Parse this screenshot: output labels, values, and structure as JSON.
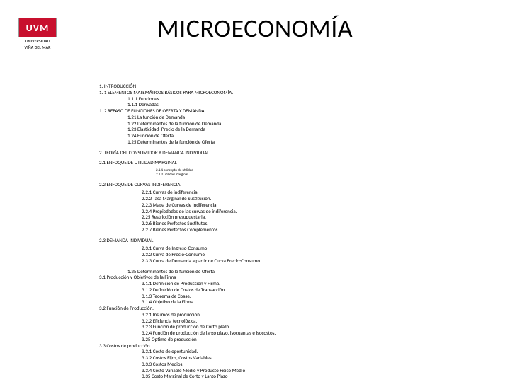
{
  "logo": {
    "letters": "UVM",
    "sub1": "UNIVERSIDAD",
    "sub2": "VIÑA DEL MAR"
  },
  "title": "MICROECONOMÍA",
  "lines": [
    {
      "cls": "l0",
      "t": "1. INTRODUCCIÓN"
    },
    {
      "cls": "l0",
      "t": "1. 1 ELEMENTOS MATEMÁTICOS BÁSICOS PARA MICROECONOMÍA."
    },
    {
      "cls": "l1",
      "t": "1.1.1 Funciones"
    },
    {
      "cls": "l1",
      "t": "1.1.1 Derivadas"
    },
    {
      "cls": "l0",
      "t": "1. 2 REPASO DE FUNCIONES DE OFERTA Y DEMANDA"
    },
    {
      "cls": "l1",
      "t": "1.21 La función de Demanda"
    },
    {
      "cls": "l1",
      "t": "1.22 Determinantes de la función de Demanda"
    },
    {
      "cls": "l1",
      "t": "1.23 Elasticidad- Precio de la Demanda"
    },
    {
      "cls": "l1",
      "t": "1.24 Función de Oferta"
    },
    {
      "cls": "l1",
      "t": "1.25 Determinantes de la función de Oferta"
    },
    {
      "cls": "l0 sect",
      "t": "2. TEORÍA DEL CONSUMIDOR Y DEMANDA INDIVIDUAL."
    },
    {
      "cls": "l0 sect",
      "t": "2.1 ENFOQUE DE UTILIDAD MARGINAL"
    },
    {
      "cls": "tiny sp",
      "t": "2.1.1 concepto de utilidad"
    },
    {
      "cls": "tiny",
      "t": "2.1.2 utilidad marginal"
    },
    {
      "cls": "l0 sect",
      "t": "2.2 ENFOQUE DE CURVAS INDIFERENCIA."
    },
    {
      "cls": "l2 sp",
      "t": "2.2.1 Curvas de indiferencia."
    },
    {
      "cls": "l2",
      "t": "2.2.2 Tasa Marginal de Sustitución."
    },
    {
      "cls": "l2",
      "t": "2.2.3 Mapa de Curvas de Indiferencia."
    },
    {
      "cls": "l2",
      "t": "2.2.4 Propiedades de las curvas de indiferencia."
    },
    {
      "cls": "l2",
      "t": "2.25 Restricción presupuestaria."
    },
    {
      "cls": "l2",
      "t": "2.2.6 Bienes Perfectos Sustitutos."
    },
    {
      "cls": "l2",
      "t": "2.2.7 Bienes Perfectos Complementos"
    },
    {
      "cls": "l0 sect",
      "t": "2.3 DEMANDA INDIVIDUAL"
    },
    {
      "cls": "l2 sp",
      "t": "2.3.1 Curva de Ingreso-Consumo"
    },
    {
      "cls": "l2",
      "t": "2.3.2 Curva de Precio-Consumo"
    },
    {
      "cls": "l2",
      "t": "2.3.3 Curva de Demanda a partir de Curva Precio-Consumo"
    },
    {
      "cls": "l1 sect",
      "t": "1.25 Determinantes de la función de Oferta"
    },
    {
      "cls": "l0",
      "t": "3.1 Producción y Objetivos de la Firma"
    },
    {
      "cls": "l2",
      "t": "3.1.1 Definición de Producción y Firma."
    },
    {
      "cls": "l2",
      "t": "3.1.2 Definición de Costos de Transacción."
    },
    {
      "cls": "l2",
      "t": "3.1.3 Teorema de Coase."
    },
    {
      "cls": "l2",
      "t": "3.1.4 Objetivo de la Firma."
    },
    {
      "cls": "l0",
      "t": "3.2 Función de Producción."
    },
    {
      "cls": "l2",
      "t": "3.2.1 Insumos de producción."
    },
    {
      "cls": "l2",
      "t": "3.2.2 Eficiencia tecnológica."
    },
    {
      "cls": "l2",
      "t": "3.2.3 Función de producción de Corto plazo."
    },
    {
      "cls": "l2",
      "t": "3.2.4 Función de producción de largo plazo, isocuantas e isocostos."
    },
    {
      "cls": "l2",
      "t": "3.25 Optimo de producción"
    },
    {
      "cls": "l0",
      "t": "3.3 Costos de producción."
    },
    {
      "cls": "l2",
      "t": "3.3.1 Costo de oportunidad."
    },
    {
      "cls": "l2",
      "t": "3.3.2 Costos Fijos, Costos Variables."
    },
    {
      "cls": "l2",
      "t": "3.3.3 Costos Medios."
    },
    {
      "cls": "l2",
      "t": "3.3.4 Costo Variable Medio y Producto Físico Medio"
    },
    {
      "cls": "l2",
      "t": "3.35 Costo Marginal de Corto y Largo Plazo"
    }
  ]
}
